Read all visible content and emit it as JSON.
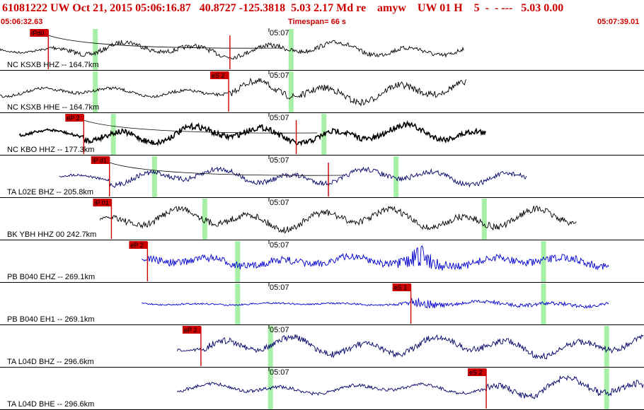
{
  "header": {
    "title": "61081222 UW Oct 21, 2015 05:06:16.87   40.8727 -125.3818  5.03 2.17 Md re    amyw    UW 01 H    5  -  - ---   5.03 0.00",
    "start_time": "05:06:32.63",
    "timespan": "Timespan=  66 s",
    "end_time": "05:07:39.01"
  },
  "colors": {
    "accent_red": "#cc0000",
    "marker_green": "#a8f0a8",
    "trace_black": "#000000",
    "trace_blue": "#0000cc",
    "trace_navy": "#000066"
  },
  "minute_label": "05:07",
  "traces": [
    {
      "label": "NC KSXB HHZ -- 164.7km",
      "pick": "iPd0",
      "color": "black",
      "start": 0.0,
      "end": 0.72,
      "pick_at": 0.075,
      "green": [
        0.148,
        0.452
      ],
      "amp": 12,
      "s_at": 0.357,
      "curve": true
    },
    {
      "label": "NC KSXB HHE -- 164.7km",
      "pick": "eS 2",
      "color": "black",
      "start": 0.0,
      "end": 0.725,
      "pick_at": 0.355,
      "green": [
        0.148,
        0.452
      ],
      "amp": 17,
      "curve": false
    },
    {
      "label": "NC KBO HHZ -- 177.3km",
      "pick": "eP 2",
      "color": "black",
      "start": 0.03,
      "end": 0.755,
      "pick_at": 0.13,
      "green": [
        0.176,
        0.503
      ],
      "amp": 15,
      "s_at": 0.46,
      "curve": true,
      "thick": true
    },
    {
      "label": "TA L02E BHZ -- 205.8km",
      "pick": "iP d1",
      "color": "navy",
      "start": 0.092,
      "end": 0.818,
      "pick_at": 0.17,
      "green": [
        0.24,
        0.615
      ],
      "amp": 13,
      "s_at": 0.51,
      "curve": true
    },
    {
      "label": "BK YBH HHZ 00 242.7km",
      "pick": "iP 01",
      "color": "black",
      "start": 0.155,
      "end": 0.895,
      "pick_at": 0.173,
      "green": [
        0.318,
        0.752
      ],
      "amp": 17,
      "curve": false
    },
    {
      "label": "PB B040 EHZ -- 269.1km",
      "pick": "eP 2",
      "color": "blue",
      "start": 0.22,
      "end": 0.946,
      "pick_at": 0.229,
      "green": [
        0.369,
        0.844
      ],
      "amp": 8,
      "burst": 0.655,
      "curve": false
    },
    {
      "label": "PB B040 EH1 -- 269.1km",
      "pick": "eS 1",
      "color": "blue",
      "start": 0.22,
      "end": 0.946,
      "pick_at": 0.638,
      "green": [
        0.369,
        0.844
      ],
      "amp": 4,
      "burst": 0.648,
      "curve": false
    },
    {
      "label": "TA L04D BHZ -- 296.6km",
      "pick": "eP 2",
      "color": "navy",
      "start": 0.275,
      "end": 1.0,
      "pick_at": 0.312,
      "green": [
        0.42,
        0.942
      ],
      "amp": 16,
      "curve": false
    },
    {
      "label": "TA L04D BHE -- 296.6km",
      "pick": "eS 2",
      "color": "navy",
      "start": 0.275,
      "end": 1.0,
      "pick_at": 0.755,
      "green": [
        0.42,
        0.942
      ],
      "amp": 18,
      "curve": false
    }
  ]
}
